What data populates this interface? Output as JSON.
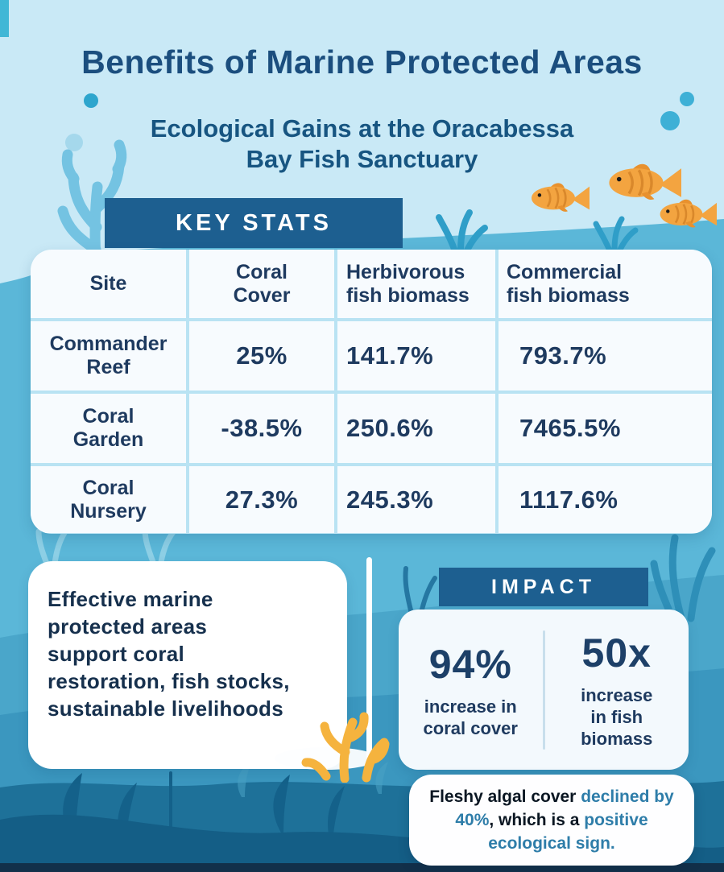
{
  "page": {
    "title": "Benefits of Marine Protected Areas",
    "subtitle_lines": [
      "Ecological Gains at the Oracabessa",
      "Bay Fish Sanctuary"
    ]
  },
  "key_stats": {
    "header": "KEY STATS"
  },
  "chart_data": {
    "type": "table",
    "title": "KEY STATS",
    "columns": [
      "Site",
      "Coral Cover",
      "Herbivorous fish biomass",
      "Commercial fish biomass"
    ],
    "rows": [
      [
        "Commander Reef",
        "25%",
        "141.7%",
        "793.7%"
      ],
      [
        "Coral Garden",
        "-38.5%",
        "250.6%",
        "7465.5%"
      ],
      [
        "Coral Nursery",
        "27.3%",
        "245.3%",
        "1117.6%"
      ]
    ]
  },
  "message_card": {
    "lines": [
      "Effective marine",
      "protected areas",
      "support coral",
      "restoration, fish stocks,",
      "sustainable livelihoods"
    ]
  },
  "impact": {
    "header": "IMPACT",
    "stats": [
      {
        "value": "94%",
        "label_lines": [
          "increase in",
          "coral cover"
        ]
      },
      {
        "value": "50x",
        "label_lines": [
          "increase",
          "in fish",
          "biomass"
        ]
      }
    ]
  },
  "algal_note": {
    "segments": [
      {
        "text": "Fleshy algal cover ",
        "style": "dark"
      },
      {
        "text": "declined by 40%",
        "style": "blue"
      },
      {
        "text": ", which is a ",
        "style": "dark"
      },
      {
        "text": "positive ecological sign.",
        "style": "blue"
      }
    ]
  },
  "colors": {
    "background_light": "#c9e9f6",
    "background_mid": "#5bb7d8",
    "seabed": "#1e7199",
    "bottom_strip": "#12304a",
    "header_box": "#1d5f90",
    "title_navy": "#1b4e7e",
    "table_text": "#1e3a5f",
    "note_blue": "#2e7da9",
    "note_dark": "#0a1622",
    "fish_orange": "#f3a440",
    "coral_yellow": "#f5b33e",
    "deco_blue": "#74c3e2"
  }
}
